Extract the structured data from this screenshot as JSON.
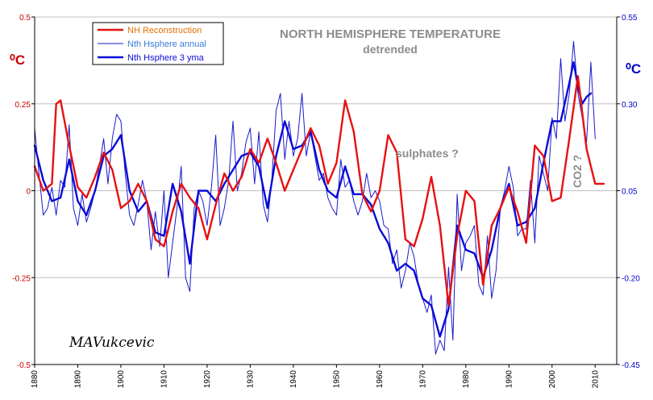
{
  "chart_data": {
    "type": "line",
    "title": "NORTH HEMISPHERE TEMPERATURE",
    "subtitle": "detrended",
    "left_unit": "⁰C",
    "right_unit": "⁰C",
    "left_axis": {
      "ylim": [
        -0.5,
        0.5
      ],
      "ticks": [
        "0.5",
        "0.25",
        "0",
        "-0.25",
        "-0.5"
      ],
      "color": "#cc0000"
    },
    "right_axis": {
      "ylim": [
        -0.45,
        0.55
      ],
      "ticks": [
        "0.55",
        "0.30",
        "0.05",
        "-0.20",
        "-0.45"
      ],
      "color": "#0000cc"
    },
    "x_axis": {
      "xlim": [
        1880,
        2015
      ],
      "ticks": [
        "1880",
        "1890",
        "1900",
        "1910",
        "1920",
        "1930",
        "1940",
        "1950",
        "1960",
        "1970",
        "1980",
        "1990",
        "2000",
        "2010"
      ]
    },
    "grid": "horizontal",
    "legend_position": "top-left",
    "annotations": [
      {
        "text": "sulphates ?",
        "x": 1969,
        "y": 0.11
      },
      {
        "text": "CO2 ?",
        "x": 2006,
        "y": 0.02
      }
    ],
    "signature": "MAVukcevic",
    "series": [
      {
        "name": "NH Reconstruction",
        "axis": "left",
        "color": "#e81010",
        "label_color": "#e07000",
        "width": 2.4,
        "x": [
          1880,
          1882,
          1884,
          1885,
          1886,
          1888,
          1890,
          1892,
          1894,
          1896,
          1898,
          1900,
          1902,
          1904,
          1906,
          1908,
          1910,
          1912,
          1914,
          1916,
          1918,
          1920,
          1922,
          1924,
          1926,
          1928,
          1930,
          1932,
          1934,
          1936,
          1938,
          1940,
          1942,
          1944,
          1946,
          1948,
          1950,
          1952,
          1954,
          1956,
          1958,
          1960,
          1962,
          1964,
          1966,
          1968,
          1970,
          1972,
          1974,
          1976,
          1978,
          1980,
          1982,
          1984,
          1986,
          1988,
          1990,
          1992,
          1994,
          1996,
          1998,
          2000,
          2002,
          2004,
          2006,
          2008,
          2010,
          2012
        ],
        "values": [
          0.07,
          0.0,
          0.02,
          0.25,
          0.26,
          0.13,
          0.01,
          -0.02,
          0.04,
          0.11,
          0.06,
          -0.05,
          -0.03,
          0.02,
          -0.03,
          -0.14,
          -0.16,
          -0.06,
          0.02,
          -0.02,
          -0.05,
          -0.14,
          -0.04,
          0.05,
          0.0,
          0.04,
          0.12,
          0.08,
          0.15,
          0.08,
          0.0,
          0.06,
          0.12,
          0.18,
          0.13,
          0.02,
          0.08,
          0.26,
          0.17,
          -0.01,
          -0.06,
          0.0,
          0.16,
          0.11,
          -0.14,
          -0.16,
          -0.08,
          0.04,
          -0.1,
          -0.33,
          -0.13,
          0.0,
          -0.03,
          -0.27,
          -0.1,
          -0.05,
          0.01,
          -0.06,
          -0.15,
          0.13,
          0.1,
          -0.03,
          -0.02,
          0.15,
          0.33,
          0.12,
          0.02,
          0.02
        ]
      },
      {
        "name": "Nth Hsphere annual",
        "axis": "right",
        "color": "#1a1acc",
        "label_color": "#3a7ad8",
        "width": 1.0,
        "x": [
          1880,
          1881,
          1882,
          1883,
          1884,
          1885,
          1886,
          1887,
          1888,
          1889,
          1890,
          1891,
          1892,
          1893,
          1894,
          1895,
          1896,
          1897,
          1898,
          1899,
          1900,
          1901,
          1902,
          1903,
          1904,
          1905,
          1906,
          1907,
          1908,
          1909,
          1910,
          1911,
          1912,
          1913,
          1914,
          1915,
          1916,
          1917,
          1918,
          1919,
          1920,
          1921,
          1922,
          1923,
          1924,
          1925,
          1926,
          1927,
          1928,
          1929,
          1930,
          1931,
          1932,
          1933,
          1934,
          1935,
          1936,
          1937,
          1938,
          1939,
          1940,
          1941,
          1942,
          1943,
          1944,
          1945,
          1946,
          1947,
          1948,
          1949,
          1950,
          1951,
          1952,
          1953,
          1954,
          1955,
          1956,
          1957,
          1958,
          1959,
          1960,
          1961,
          1962,
          1963,
          1964,
          1965,
          1966,
          1967,
          1968,
          1969,
          1970,
          1971,
          1972,
          1973,
          1974,
          1975,
          1976,
          1977,
          1978,
          1979,
          1980,
          1981,
          1982,
          1983,
          1984,
          1985,
          1986,
          1987,
          1988,
          1989,
          1990,
          1991,
          1992,
          1993,
          1994,
          1995,
          1996,
          1997,
          1998,
          1999,
          2000,
          2001,
          2002,
          2003,
          2004,
          2005,
          2006,
          2007,
          2008,
          2009,
          2010
        ],
        "values": [
          0.23,
          0.1,
          -0.02,
          0.0,
          0.06,
          -0.02,
          0.08,
          0.06,
          0.24,
          0.0,
          -0.05,
          0.04,
          -0.04,
          0.0,
          0.05,
          0.12,
          0.2,
          0.07,
          0.2,
          0.27,
          0.25,
          0.1,
          -0.02,
          -0.05,
          0.01,
          0.08,
          0.02,
          -0.12,
          -0.01,
          -0.11,
          0.05,
          -0.2,
          -0.1,
          0.0,
          0.12,
          -0.2,
          -0.24,
          0.0,
          0.05,
          0.02,
          -0.05,
          0.06,
          0.21,
          -0.05,
          0.0,
          0.08,
          0.25,
          0.05,
          0.1,
          0.19,
          0.23,
          0.07,
          0.22,
          0.01,
          -0.04,
          0.08,
          0.28,
          0.33,
          0.14,
          0.25,
          0.15,
          0.2,
          0.33,
          0.15,
          0.22,
          0.15,
          0.08,
          0.1,
          0.03,
          0.0,
          -0.02,
          0.14,
          0.06,
          0.08,
          0.02,
          -0.02,
          0.02,
          0.1,
          0.03,
          0.05,
          0.02,
          -0.05,
          -0.06,
          -0.16,
          -0.12,
          -0.23,
          -0.18,
          -0.1,
          -0.14,
          -0.22,
          -0.26,
          -0.3,
          -0.25,
          -0.42,
          -0.38,
          -0.41,
          -0.17,
          -0.38,
          0.04,
          -0.18,
          -0.1,
          -0.08,
          -0.05,
          -0.22,
          -0.25,
          -0.08,
          -0.26,
          -0.18,
          0.0,
          0.05,
          0.12,
          0.06,
          -0.08,
          -0.06,
          -0.06,
          0.08,
          -0.1,
          0.15,
          0.1,
          0.05,
          0.26,
          0.2,
          0.43,
          0.25,
          0.33,
          0.48,
          0.33,
          0.26,
          0.19,
          0.42,
          0.2
        ]
      },
      {
        "name": "Nth Hsphere 3 yma",
        "axis": "right",
        "color": "#0a0ad8",
        "label_color": "#0a0ad8",
        "width": 2.4,
        "x": [
          1880,
          1882,
          1884,
          1886,
          1888,
          1890,
          1892,
          1894,
          1896,
          1898,
          1900,
          1902,
          1904,
          1906,
          1908,
          1910,
          1912,
          1914,
          1916,
          1918,
          1920,
          1922,
          1924,
          1926,
          1928,
          1930,
          1932,
          1934,
          1936,
          1938,
          1940,
          1942,
          1944,
          1946,
          1948,
          1950,
          1952,
          1954,
          1956,
          1958,
          1960,
          1962,
          1964,
          1966,
          1968,
          1970,
          1972,
          1974,
          1976,
          1978,
          1980,
          1982,
          1984,
          1986,
          1988,
          1990,
          1992,
          1994,
          1996,
          1998,
          2000,
          2002,
          2004,
          2005,
          2006,
          2007,
          2008,
          2009
        ],
        "values": [
          0.18,
          0.08,
          0.02,
          0.03,
          0.14,
          0.02,
          -0.02,
          0.05,
          0.15,
          0.17,
          0.21,
          0.05,
          -0.01,
          0.02,
          -0.07,
          -0.08,
          0.07,
          -0.01,
          -0.16,
          0.05,
          0.05,
          0.02,
          0.07,
          0.11,
          0.15,
          0.16,
          0.12,
          0.0,
          0.15,
          0.25,
          0.17,
          0.18,
          0.22,
          0.11,
          0.05,
          0.03,
          0.12,
          0.04,
          0.04,
          0.01,
          -0.06,
          -0.1,
          -0.18,
          -0.16,
          -0.18,
          -0.26,
          -0.28,
          -0.37,
          -0.29,
          -0.05,
          -0.12,
          -0.13,
          -0.2,
          -0.12,
          0.0,
          0.07,
          -0.05,
          -0.04,
          0.0,
          0.13,
          0.25,
          0.25,
          0.36,
          0.42,
          0.35,
          0.3,
          0.32,
          0.33
        ]
      }
    ]
  }
}
